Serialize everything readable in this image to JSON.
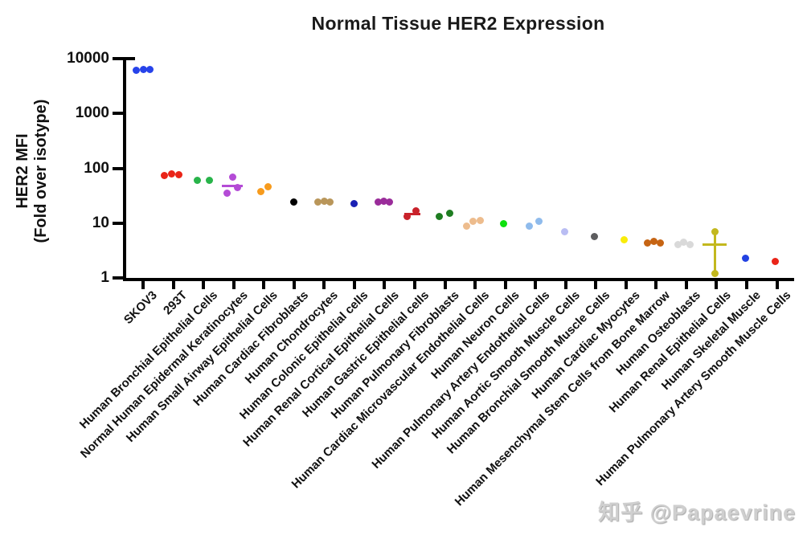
{
  "watermark": {
    "text": "知乎 @Papaevrine"
  },
  "chart_data": {
    "type": "scatter",
    "title": "Normal Tissue HER2 Expression",
    "ylabel_line1": "HER2 MFI",
    "ylabel_line2": "(Fold over isotype)",
    "xlabel": "",
    "yscale": "log",
    "ylim": [
      1,
      10000
    ],
    "grid": false,
    "legend": "none",
    "yticks": [
      {
        "v": 10000,
        "label": "10000"
      },
      {
        "v": 1000,
        "label": "1000"
      },
      {
        "v": 100,
        "label": "100"
      },
      {
        "v": 10,
        "label": "10"
      },
      {
        "v": 1,
        "label": "1"
      }
    ],
    "series": [
      {
        "label": "SKOV3",
        "color": "#2743ea",
        "points": [
          {
            "dx": -9,
            "v": 6200
          },
          {
            "dx": 0,
            "v": 6400
          },
          {
            "dx": 8,
            "v": 6300
          }
        ],
        "mean": null,
        "error": null
      },
      {
        "label": "293T",
        "color": "#ea2418",
        "points": [
          {
            "dx": -11,
            "v": 73
          },
          {
            "dx": -2,
            "v": 78
          },
          {
            "dx": 7,
            "v": 76
          }
        ],
        "mean": null,
        "error": null
      },
      {
        "label": "Human Bronchial Epithelial Cells",
        "color": "#28b44a",
        "points": [
          {
            "dx": -8,
            "v": 61
          },
          {
            "dx": 7,
            "v": 61
          }
        ],
        "mean": null,
        "error": null
      },
      {
        "label": "Normal Human Epidermal Keratinocytes",
        "color": "#b44bd6",
        "points": [
          {
            "dx": -1,
            "v": 69
          },
          {
            "dx": 5,
            "v": 45
          },
          {
            "dx": -8,
            "v": 35
          }
        ],
        "mean": 47,
        "mean_dx": -2,
        "mean_width": 26,
        "error": null
      },
      {
        "label": "Human Small Airway Epithelial Cells",
        "color": "#f79b1d",
        "points": [
          {
            "dx": -4,
            "v": 38
          },
          {
            "dx": 5,
            "v": 46
          }
        ],
        "mean": null,
        "error": null
      },
      {
        "label": "Human Cardiac Fibroblasts",
        "color": "#000000",
        "points": [
          {
            "dx": 0,
            "v": 24
          }
        ],
        "mean": null,
        "error": null
      },
      {
        "label": "Human Chondrocytes",
        "color": "#b9965a",
        "points": [
          {
            "dx": -8,
            "v": 24
          },
          {
            "dx": 0,
            "v": 25
          },
          {
            "dx": 7,
            "v": 24
          }
        ],
        "mean": null,
        "error": null
      },
      {
        "label": "Human Colonic Epithelial cells",
        "color": "#1a20b4",
        "points": [
          {
            "dx": 0,
            "v": 23
          }
        ],
        "mean": null,
        "error": null
      },
      {
        "label": "Human Renal Cortical Epithelial Cells",
        "color": "#9a2c9a",
        "points": [
          {
            "dx": -8,
            "v": 24
          },
          {
            "dx": -1,
            "v": 25
          },
          {
            "dx": 6,
            "v": 24
          }
        ],
        "mean": null,
        "error": null
      },
      {
        "label": "Human Gastric Epithelial cells",
        "color": "#c9222b",
        "points": [
          {
            "dx": -9,
            "v": 13.3
          },
          {
            "dx": 2,
            "v": 16.8
          }
        ],
        "mean": 14.7,
        "mean_dx": -3,
        "mean_width": 20,
        "error": null
      },
      {
        "label": "Human Pulmonary Fibroblasts",
        "color": "#1e7d21",
        "points": [
          {
            "dx": -7,
            "v": 13
          },
          {
            "dx": 6,
            "v": 15.3
          }
        ],
        "mean": null,
        "error": null
      },
      {
        "label": "Human Cardiac Microvascular Endothelial Cells",
        "color": "#edbc8d",
        "points": [
          {
            "dx": -11,
            "v": 8.9
          },
          {
            "dx": -3,
            "v": 10.9
          },
          {
            "dx": 6,
            "v": 11.2
          }
        ],
        "mean": null,
        "error": null
      },
      {
        "label": "Human Neuron Cells",
        "color": "#0ee00e",
        "points": [
          {
            "dx": -2,
            "v": 9.8
          }
        ],
        "mean": null,
        "error": null
      },
      {
        "label": "Human Pulmonary Artery Endothelial Cells",
        "color": "#8fbbec",
        "points": [
          {
            "dx": -8,
            "v": 8.9
          },
          {
            "dx": 4,
            "v": 10.9
          }
        ],
        "mean": null,
        "error": null
      },
      {
        "label": "Human Aortic Smooth Muscle Cells",
        "color": "#b9bdf3",
        "points": [
          {
            "dx": -1,
            "v": 7.0
          }
        ],
        "mean": null,
        "error": null
      },
      {
        "label": "Human Bronchial Smooth Muscle Cells",
        "color": "#5d5d5f",
        "points": [
          {
            "dx": -2,
            "v": 5.6
          }
        ],
        "mean": null,
        "error": null
      },
      {
        "label": "Human Cardiac Myocytes",
        "color": "#f9ec0a",
        "points": [
          {
            "dx": -2,
            "v": 5.0
          }
        ],
        "mean": null,
        "error": null
      },
      {
        "label": "Human Mesenchymal Stem Cells from Bone Marrow",
        "color": "#c66413",
        "points": [
          {
            "dx": -11,
            "v": 4.4
          },
          {
            "dx": -3,
            "v": 4.7
          },
          {
            "dx": 5,
            "v": 4.4
          }
        ],
        "mean": null,
        "error": null
      },
      {
        "label": "Human Osteoblasts",
        "color": "#d9d9d9",
        "points": [
          {
            "dx": -10,
            "v": 4.1
          },
          {
            "dx": -3,
            "v": 4.5
          },
          {
            "dx": 5,
            "v": 4.1
          }
        ],
        "mean": null,
        "error": null
      },
      {
        "label": "Human Renal Epithelial Cells",
        "color": "#c3b81e",
        "points": [
          {
            "dx": -2,
            "v": 7.0
          },
          {
            "dx": -2,
            "v": 1.22
          }
        ],
        "mean": 4.0,
        "mean_dx": -2,
        "mean_width": 30,
        "error": [
          1.22,
          7.0
        ],
        "error_dx": -2
      },
      {
        "label": "Human Skeletal Muscle",
        "color": "#2342e2",
        "points": [
          {
            "dx": -2,
            "v": 2.3
          }
        ],
        "mean": null,
        "error": null
      },
      {
        "label": "Human Pulmonary Artery Smooth Muscle Cells",
        "color": "#ea2418",
        "points": [
          {
            "dx": -2,
            "v": 2.0
          }
        ],
        "mean": null,
        "error": null
      }
    ]
  }
}
